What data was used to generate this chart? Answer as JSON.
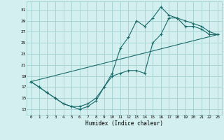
{
  "xlabel": "Humidex (Indice chaleur)",
  "bg_color": "#d4efef",
  "grid_color": "#a8d4d4",
  "line_color": "#1a6b6b",
  "xlim": [
    -0.5,
    23.5
  ],
  "ylim": [
    12,
    32.5
  ],
  "xticks": [
    0,
    1,
    2,
    3,
    4,
    5,
    6,
    7,
    8,
    9,
    10,
    11,
    12,
    13,
    14,
    15,
    16,
    17,
    18,
    19,
    20,
    21,
    22,
    23
  ],
  "yticks": [
    13,
    15,
    17,
    19,
    21,
    23,
    25,
    27,
    29,
    31
  ],
  "line1_x": [
    0,
    1,
    2,
    3,
    4,
    5,
    6,
    7,
    8,
    9,
    10,
    11,
    12,
    13,
    14,
    15,
    16,
    17,
    18,
    19,
    20,
    21,
    22,
    23
  ],
  "line1_y": [
    18,
    17,
    16,
    15,
    14,
    13.5,
    13.5,
    14,
    15,
    17,
    19.5,
    24,
    26,
    29,
    28,
    29.5,
    31.5,
    30,
    29.5,
    28,
    28,
    27.5,
    26.5,
    26.5
  ],
  "line2_x": [
    0,
    1,
    2,
    3,
    4,
    5,
    6,
    7,
    8,
    9,
    10,
    11,
    12,
    13,
    14,
    15,
    16,
    17,
    18,
    19,
    20,
    21,
    22,
    23
  ],
  "line2_y": [
    18,
    17,
    16,
    15,
    14,
    13.5,
    13,
    13.5,
    14.5,
    17,
    19,
    19.5,
    20,
    20,
    19.5,
    25,
    26.5,
    29.5,
    29.5,
    29,
    28.5,
    28,
    27,
    26.5
  ],
  "line3_x": [
    0,
    23
  ],
  "line3_y": [
    18,
    26.5
  ]
}
